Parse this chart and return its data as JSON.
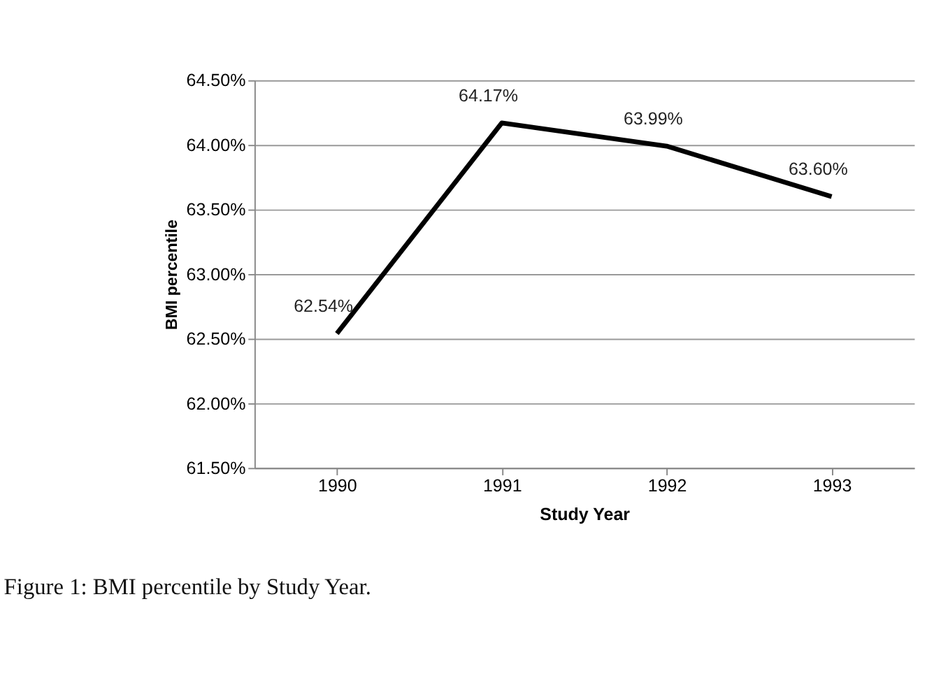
{
  "chart_data": {
    "type": "line",
    "xlabel": "Study Year",
    "ylabel": "BMI percentile",
    "categories": [
      "1990",
      "1991",
      "1992",
      "1993"
    ],
    "series": [
      {
        "color": "#000000",
        "values": [
          62.54,
          64.17,
          63.99,
          63.6
        ],
        "value_labels": [
          "62.54%",
          "64.17%",
          "63.99%",
          "63.60%"
        ]
      }
    ],
    "ylim": [
      61.5,
      64.5
    ],
    "yticks": [
      {
        "value": 61.5,
        "label": "61.50%"
      },
      {
        "value": 62.0,
        "label": "62.00%"
      },
      {
        "value": 62.5,
        "label": "62.50%"
      },
      {
        "value": 63.0,
        "label": "63.00%"
      },
      {
        "value": 63.5,
        "label": "63.50%"
      },
      {
        "value": 64.0,
        "label": "64.00%"
      },
      {
        "value": 64.5,
        "label": "64.50%"
      }
    ],
    "grid": "y",
    "legend": false,
    "marker": "none",
    "line_style": "solid",
    "annotations": [
      "Figure 1: BMI percentile by Study Year."
    ]
  }
}
